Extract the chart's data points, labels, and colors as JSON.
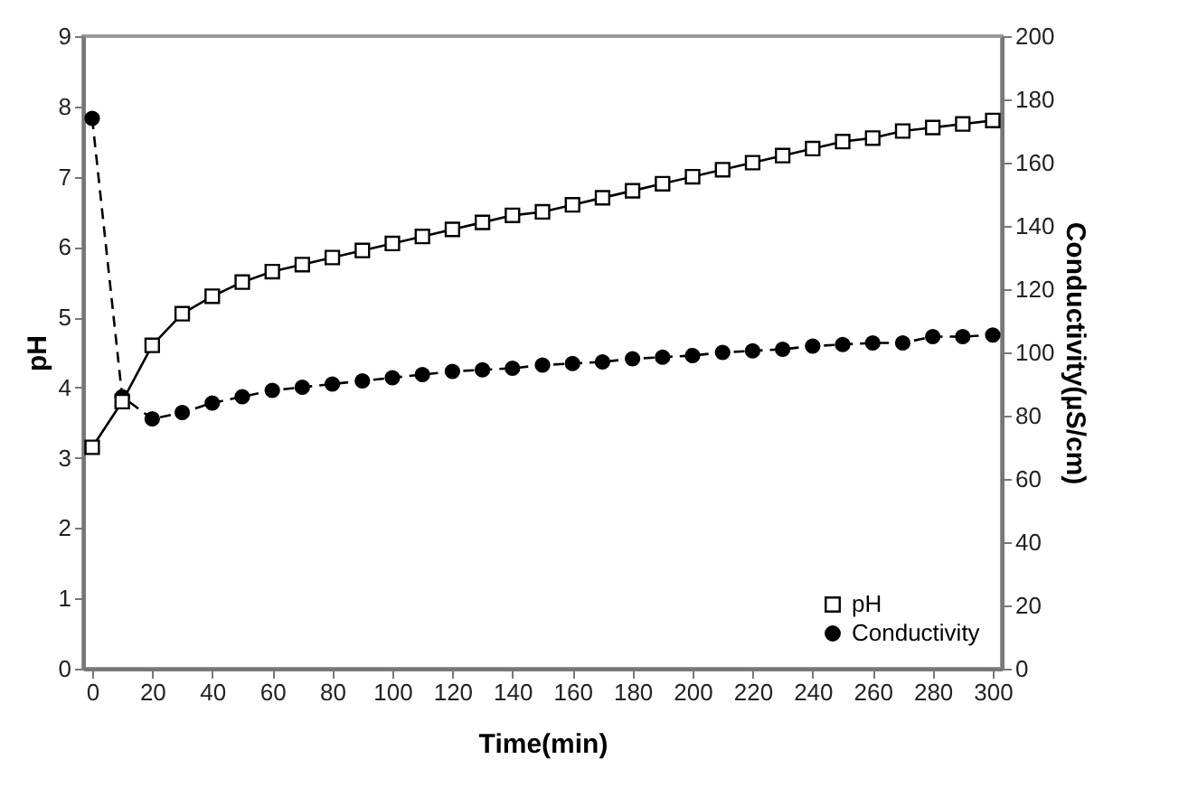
{
  "chart_data": {
    "type": "line",
    "xlabel": "Time(min)",
    "ylabel": "pH",
    "y2label": "Conductivity(µS/cm)",
    "x": [
      0,
      10,
      20,
      30,
      40,
      50,
      60,
      70,
      80,
      90,
      100,
      110,
      120,
      130,
      140,
      150,
      160,
      170,
      180,
      190,
      200,
      210,
      220,
      230,
      240,
      250,
      260,
      270,
      280,
      290,
      300
    ],
    "series": [
      {
        "name": "pH",
        "color": "#000000",
        "marker": "square",
        "line_style": "solid",
        "values": [
          3.15,
          3.8,
          4.6,
          5.05,
          5.3,
          5.5,
          5.65,
          5.75,
          5.85,
          5.95,
          6.05,
          6.15,
          6.25,
          6.35,
          6.45,
          6.5,
          6.6,
          6.7,
          6.8,
          6.9,
          7.0,
          7.1,
          7.2,
          7.3,
          7.4,
          7.5,
          7.55,
          7.65,
          7.7,
          7.75,
          7.8
        ]
      },
      {
        "name": "Conductivity",
        "color": "#000000",
        "marker": "circle",
        "line_style": "dashed",
        "axis": "y2",
        "values": [
          174,
          86,
          79,
          81,
          84,
          86,
          88,
          89,
          90,
          91,
          92,
          93,
          94,
          94.5,
          95,
          96,
          96.5,
          97,
          98,
          98.5,
          99,
          100,
          100.5,
          101,
          102,
          102.5,
          103,
          103,
          105,
          105,
          105.5
        ]
      }
    ],
    "xlim": [
      -3,
      303
    ],
    "xticks": [
      0,
      20,
      40,
      60,
      80,
      100,
      120,
      140,
      160,
      180,
      200,
      220,
      240,
      260,
      280,
      300
    ],
    "ylim": [
      0,
      9
    ],
    "yticks": [
      0,
      1,
      2,
      3,
      4,
      5,
      6,
      7,
      8,
      9
    ],
    "y2lim": [
      0,
      200
    ],
    "y2ticks": [
      0,
      20,
      40,
      60,
      80,
      100,
      120,
      140,
      160,
      180,
      200
    ],
    "grid": false,
    "legend": "bottom right"
  }
}
